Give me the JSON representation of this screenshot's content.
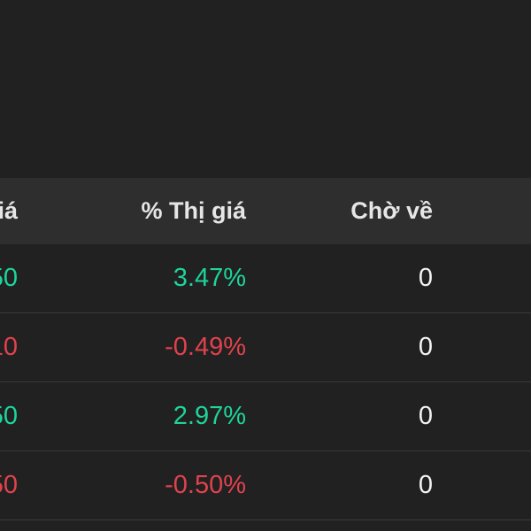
{
  "colors": {
    "background": "#212121",
    "header_background": "#2e2e2e",
    "up": "#1ed49a",
    "down": "#e0424d",
    "text": "#f2f2f2"
  },
  "header": {
    "price_partial": "iá",
    "percent": "% Thị giá",
    "pending": "Chờ về"
  },
  "rows": [
    {
      "price_partial": "50",
      "percent": "3.47%",
      "pending": "0",
      "direction": "up"
    },
    {
      "price_partial": "10",
      "percent": "-0.49%",
      "pending": "0",
      "direction": "down"
    },
    {
      "price_partial": "50",
      "percent": "2.97%",
      "pending": "0",
      "direction": "up"
    },
    {
      "price_partial": "50",
      "percent": "-0.50%",
      "pending": "0",
      "direction": "down"
    }
  ]
}
